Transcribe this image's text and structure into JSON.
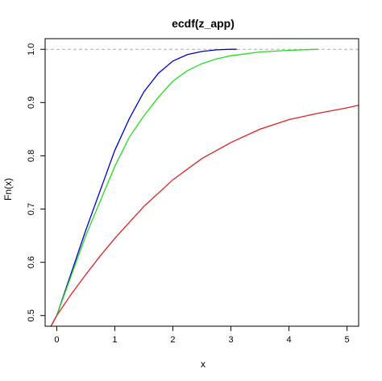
{
  "chart_data": {
    "type": "line",
    "title": "ecdf(z_app)",
    "xlabel": "x",
    "ylabel": "Fn(x)",
    "xlim": [
      -0.2,
      5.2
    ],
    "ylim": [
      0.48,
      1.02
    ],
    "xticks": [
      0,
      1,
      2,
      3,
      4,
      5
    ],
    "yticks": [
      0.5,
      0.6,
      0.7,
      0.8,
      0.9,
      1.0
    ],
    "xtick_labels": [
      "0",
      "1",
      "2",
      "3",
      "4",
      "5"
    ],
    "ytick_labels": [
      "0.5",
      "0.6",
      "0.7",
      "0.8",
      "0.9",
      "1.0"
    ],
    "reference_line": {
      "y": 1.0,
      "color": "#aaaaaa",
      "style": "dashed"
    },
    "grid": false,
    "series": [
      {
        "color": "#0000cc",
        "x": [
          -0.1,
          0.0,
          0.25,
          0.5,
          0.75,
          1.0,
          1.25,
          1.5,
          1.75,
          2.0,
          2.25,
          2.5,
          2.75,
          3.0,
          3.1
        ],
        "y": [
          0.48,
          0.5,
          0.58,
          0.66,
          0.735,
          0.81,
          0.87,
          0.92,
          0.955,
          0.978,
          0.99,
          0.996,
          0.999,
          1.0,
          1.0
        ]
      },
      {
        "color": "#22dd22",
        "x": [
          -0.1,
          0.0,
          0.25,
          0.5,
          0.75,
          1.0,
          1.25,
          1.5,
          1.75,
          2.0,
          2.25,
          2.5,
          2.75,
          3.0,
          3.5,
          4.0,
          4.5
        ],
        "y": [
          0.48,
          0.5,
          0.575,
          0.65,
          0.715,
          0.78,
          0.835,
          0.875,
          0.91,
          0.94,
          0.96,
          0.973,
          0.982,
          0.988,
          0.995,
          0.998,
          1.0
        ]
      },
      {
        "color": "#dd2222",
        "x": [
          -0.1,
          0.0,
          0.25,
          0.5,
          0.75,
          1.0,
          1.5,
          2.0,
          2.5,
          3.0,
          3.5,
          4.0,
          4.5,
          5.0,
          5.2
        ],
        "y": [
          0.48,
          0.5,
          0.54,
          0.577,
          0.612,
          0.645,
          0.705,
          0.755,
          0.795,
          0.825,
          0.85,
          0.868,
          0.88,
          0.89,
          0.895
        ]
      }
    ]
  }
}
